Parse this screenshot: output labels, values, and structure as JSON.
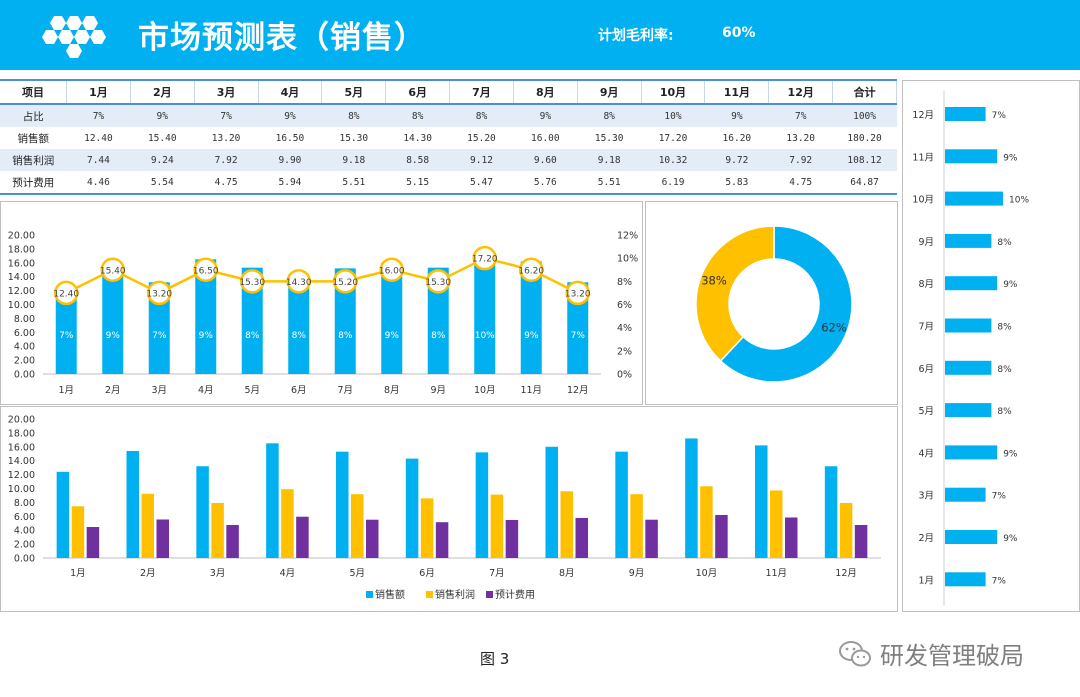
{
  "header": {
    "title": "市场预测表（销售）",
    "kpi_label": "计划毛利率:",
    "kpi_value": "60%"
  },
  "table": {
    "columns": [
      "项目",
      "1月",
      "2月",
      "3月",
      "4月",
      "5月",
      "6月",
      "7月",
      "8月",
      "9月",
      "10月",
      "11月",
      "12月",
      "合计"
    ],
    "rows": [
      {
        "label": "占比",
        "values": [
          "7%",
          "9%",
          "7%",
          "9%",
          "8%",
          "8%",
          "8%",
          "9%",
          "8%",
          "10%",
          "9%",
          "7%",
          "100%"
        ]
      },
      {
        "label": "销售额",
        "values": [
          "12.40",
          "15.40",
          "13.20",
          "16.50",
          "15.30",
          "14.30",
          "15.20",
          "16.00",
          "15.30",
          "17.20",
          "16.20",
          "13.20",
          "180.20"
        ]
      },
      {
        "label": "销售利润",
        "values": [
          "7.44",
          "9.24",
          "7.92",
          "9.90",
          "9.18",
          "8.58",
          "9.12",
          "9.60",
          "9.18",
          "10.32",
          "9.72",
          "7.92",
          "108.12"
        ]
      },
      {
        "label": "预计费用",
        "values": [
          "4.46",
          "5.54",
          "4.75",
          "5.94",
          "5.51",
          "5.15",
          "5.47",
          "5.76",
          "5.51",
          "6.19",
          "5.83",
          "4.75",
          "64.87"
        ]
      }
    ]
  },
  "chart_data": [
    {
      "type": "bar",
      "categories": [
        "1月",
        "2月",
        "3月",
        "4月",
        "5月",
        "6月",
        "7月",
        "8月",
        "9月",
        "10月",
        "11月",
        "12月"
      ],
      "series": [
        {
          "values": [
            12.4,
            15.4,
            13.2,
            16.5,
            15.3,
            14.3,
            15.2,
            16.0,
            15.3,
            17.2,
            16.2,
            13.2
          ],
          "bar_labels": [
            "7%",
            "9%",
            "7%",
            "9%",
            "8%",
            "8%",
            "8%",
            "9%",
            "8%",
            "10%",
            "9%",
            "7%"
          ]
        },
        {
          "values": [
            7,
            9,
            7,
            9,
            8,
            8,
            8,
            9,
            8,
            10,
            9,
            7
          ],
          "point_labels": [
            "12.40",
            "15.40",
            "13.20",
            "16.50",
            "15.30",
            "14.30",
            "15.20",
            "16.00",
            "15.30",
            "17.20",
            "16.20",
            "13.20"
          ]
        }
      ],
      "left_ticks": [
        "0.00",
        "2.00",
        "4.00",
        "6.00",
        "8.00",
        "10.00",
        "12.00",
        "14.00",
        "16.00",
        "18.00",
        "20.00"
      ],
      "right_ticks": [
        "0%",
        "2%",
        "4%",
        "6%",
        "8%",
        "10%",
        "12%"
      ],
      "ylim": [
        0,
        20
      ],
      "y2lim": [
        0,
        12
      ],
      "colors": {
        "bar": "#00b0f0",
        "line": "#ffc000"
      }
    },
    {
      "type": "pie",
      "slices": [
        {
          "value": 62,
          "label": "62%",
          "color": "#00b0f0"
        },
        {
          "value": 38,
          "label": "38%",
          "color": "#ffc000"
        }
      ]
    },
    {
      "type": "bar",
      "orientation": "horizontal",
      "categories": [
        "12月",
        "11月",
        "10月",
        "9月",
        "8月",
        "7月",
        "6月",
        "5月",
        "4月",
        "3月",
        "2月",
        "1月"
      ],
      "values": [
        7,
        9,
        10,
        8,
        9,
        8,
        8,
        8,
        9,
        7,
        9,
        7
      ],
      "labels": [
        "7%",
        "9%",
        "10%",
        "8%",
        "9%",
        "8%",
        "8%",
        "8%",
        "9%",
        "7%",
        "9%",
        "7%"
      ],
      "color": "#00b0f0"
    },
    {
      "type": "bar",
      "categories": [
        "1月",
        "2月",
        "3月",
        "4月",
        "5月",
        "6月",
        "7月",
        "8月",
        "9月",
        "10月",
        "11月",
        "12月"
      ],
      "series": [
        {
          "name": "销售额",
          "color": "#00b0f0",
          "values": [
            12.4,
            15.4,
            13.2,
            16.5,
            15.3,
            14.3,
            15.2,
            16.0,
            15.3,
            17.2,
            16.2,
            13.2
          ]
        },
        {
          "name": "销售利润",
          "color": "#ffc000",
          "values": [
            7.44,
            9.24,
            7.92,
            9.9,
            9.18,
            8.58,
            9.12,
            9.6,
            9.18,
            10.32,
            9.72,
            7.92
          ]
        },
        {
          "name": "预计费用",
          "color": "#7030a0",
          "values": [
            4.46,
            5.54,
            4.75,
            5.94,
            5.51,
            5.15,
            5.47,
            5.76,
            5.51,
            6.19,
            5.83,
            4.75
          ]
        }
      ],
      "ticks": [
        "0.00",
        "2.00",
        "4.00",
        "6.00",
        "8.00",
        "10.00",
        "12.00",
        "14.00",
        "16.00",
        "18.00",
        "20.00"
      ],
      "ylim": [
        0,
        20
      ],
      "legend": "bottom"
    }
  ],
  "footer": {
    "caption": "图 3",
    "watermark": "研发管理破局"
  }
}
